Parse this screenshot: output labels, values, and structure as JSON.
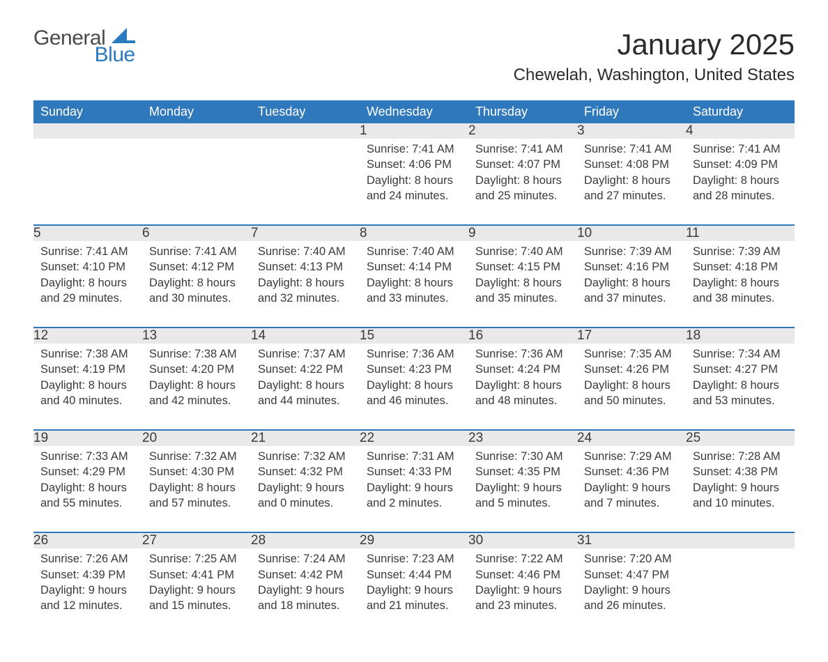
{
  "logo": {
    "word1": "General",
    "word2": "Blue",
    "sail_color": "#2a7ac0"
  },
  "title": "January 2025",
  "location": "Chewelah, Washington, United States",
  "colors": {
    "header_bg": "#3078bc",
    "header_fg": "#ffffff",
    "daynum_bg": "#e9e9e9",
    "rule": "#3078bc",
    "text": "#3a3a3a",
    "background": "#ffffff"
  },
  "day_headers": [
    "Sunday",
    "Monday",
    "Tuesday",
    "Wednesday",
    "Thursday",
    "Friday",
    "Saturday"
  ],
  "weeks": [
    [
      null,
      null,
      null,
      {
        "num": "1",
        "sunrise": "Sunrise: 7:41 AM",
        "sunset": "Sunset: 4:06 PM",
        "daylight": "Daylight: 8 hours and 24 minutes."
      },
      {
        "num": "2",
        "sunrise": "Sunrise: 7:41 AM",
        "sunset": "Sunset: 4:07 PM",
        "daylight": "Daylight: 8 hours and 25 minutes."
      },
      {
        "num": "3",
        "sunrise": "Sunrise: 7:41 AM",
        "sunset": "Sunset: 4:08 PM",
        "daylight": "Daylight: 8 hours and 27 minutes."
      },
      {
        "num": "4",
        "sunrise": "Sunrise: 7:41 AM",
        "sunset": "Sunset: 4:09 PM",
        "daylight": "Daylight: 8 hours and 28 minutes."
      }
    ],
    [
      {
        "num": "5",
        "sunrise": "Sunrise: 7:41 AM",
        "sunset": "Sunset: 4:10 PM",
        "daylight": "Daylight: 8 hours and 29 minutes."
      },
      {
        "num": "6",
        "sunrise": "Sunrise: 7:41 AM",
        "sunset": "Sunset: 4:12 PM",
        "daylight": "Daylight: 8 hours and 30 minutes."
      },
      {
        "num": "7",
        "sunrise": "Sunrise: 7:40 AM",
        "sunset": "Sunset: 4:13 PM",
        "daylight": "Daylight: 8 hours and 32 minutes."
      },
      {
        "num": "8",
        "sunrise": "Sunrise: 7:40 AM",
        "sunset": "Sunset: 4:14 PM",
        "daylight": "Daylight: 8 hours and 33 minutes."
      },
      {
        "num": "9",
        "sunrise": "Sunrise: 7:40 AM",
        "sunset": "Sunset: 4:15 PM",
        "daylight": "Daylight: 8 hours and 35 minutes."
      },
      {
        "num": "10",
        "sunrise": "Sunrise: 7:39 AM",
        "sunset": "Sunset: 4:16 PM",
        "daylight": "Daylight: 8 hours and 37 minutes."
      },
      {
        "num": "11",
        "sunrise": "Sunrise: 7:39 AM",
        "sunset": "Sunset: 4:18 PM",
        "daylight": "Daylight: 8 hours and 38 minutes."
      }
    ],
    [
      {
        "num": "12",
        "sunrise": "Sunrise: 7:38 AM",
        "sunset": "Sunset: 4:19 PM",
        "daylight": "Daylight: 8 hours and 40 minutes."
      },
      {
        "num": "13",
        "sunrise": "Sunrise: 7:38 AM",
        "sunset": "Sunset: 4:20 PM",
        "daylight": "Daylight: 8 hours and 42 minutes."
      },
      {
        "num": "14",
        "sunrise": "Sunrise: 7:37 AM",
        "sunset": "Sunset: 4:22 PM",
        "daylight": "Daylight: 8 hours and 44 minutes."
      },
      {
        "num": "15",
        "sunrise": "Sunrise: 7:36 AM",
        "sunset": "Sunset: 4:23 PM",
        "daylight": "Daylight: 8 hours and 46 minutes."
      },
      {
        "num": "16",
        "sunrise": "Sunrise: 7:36 AM",
        "sunset": "Sunset: 4:24 PM",
        "daylight": "Daylight: 8 hours and 48 minutes."
      },
      {
        "num": "17",
        "sunrise": "Sunrise: 7:35 AM",
        "sunset": "Sunset: 4:26 PM",
        "daylight": "Daylight: 8 hours and 50 minutes."
      },
      {
        "num": "18",
        "sunrise": "Sunrise: 7:34 AM",
        "sunset": "Sunset: 4:27 PM",
        "daylight": "Daylight: 8 hours and 53 minutes."
      }
    ],
    [
      {
        "num": "19",
        "sunrise": "Sunrise: 7:33 AM",
        "sunset": "Sunset: 4:29 PM",
        "daylight": "Daylight: 8 hours and 55 minutes."
      },
      {
        "num": "20",
        "sunrise": "Sunrise: 7:32 AM",
        "sunset": "Sunset: 4:30 PM",
        "daylight": "Daylight: 8 hours and 57 minutes."
      },
      {
        "num": "21",
        "sunrise": "Sunrise: 7:32 AM",
        "sunset": "Sunset: 4:32 PM",
        "daylight": "Daylight: 9 hours and 0 minutes."
      },
      {
        "num": "22",
        "sunrise": "Sunrise: 7:31 AM",
        "sunset": "Sunset: 4:33 PM",
        "daylight": "Daylight: 9 hours and 2 minutes."
      },
      {
        "num": "23",
        "sunrise": "Sunrise: 7:30 AM",
        "sunset": "Sunset: 4:35 PM",
        "daylight": "Daylight: 9 hours and 5 minutes."
      },
      {
        "num": "24",
        "sunrise": "Sunrise: 7:29 AM",
        "sunset": "Sunset: 4:36 PM",
        "daylight": "Daylight: 9 hours and 7 minutes."
      },
      {
        "num": "25",
        "sunrise": "Sunrise: 7:28 AM",
        "sunset": "Sunset: 4:38 PM",
        "daylight": "Daylight: 9 hours and 10 minutes."
      }
    ],
    [
      {
        "num": "26",
        "sunrise": "Sunrise: 7:26 AM",
        "sunset": "Sunset: 4:39 PM",
        "daylight": "Daylight: 9 hours and 12 minutes."
      },
      {
        "num": "27",
        "sunrise": "Sunrise: 7:25 AM",
        "sunset": "Sunset: 4:41 PM",
        "daylight": "Daylight: 9 hours and 15 minutes."
      },
      {
        "num": "28",
        "sunrise": "Sunrise: 7:24 AM",
        "sunset": "Sunset: 4:42 PM",
        "daylight": "Daylight: 9 hours and 18 minutes."
      },
      {
        "num": "29",
        "sunrise": "Sunrise: 7:23 AM",
        "sunset": "Sunset: 4:44 PM",
        "daylight": "Daylight: 9 hours and 21 minutes."
      },
      {
        "num": "30",
        "sunrise": "Sunrise: 7:22 AM",
        "sunset": "Sunset: 4:46 PM",
        "daylight": "Daylight: 9 hours and 23 minutes."
      },
      {
        "num": "31",
        "sunrise": "Sunrise: 7:20 AM",
        "sunset": "Sunset: 4:47 PM",
        "daylight": "Daylight: 9 hours and 26 minutes."
      },
      null
    ]
  ]
}
